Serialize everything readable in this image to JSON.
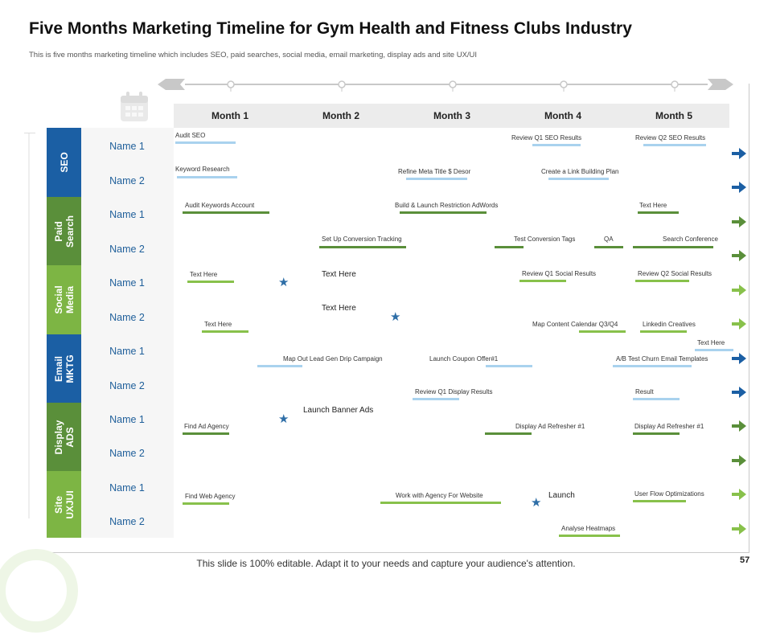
{
  "title": "Five Months Marketing Timeline for Gym Health and Fitness Clubs Industry",
  "subtitle": "This is five months marketing timeline which includes SEO, paid searches, social media, email marketing, display ads and site UX/UI",
  "months": [
    "Month 1",
    "Month 2",
    "Month 3",
    "Month 4",
    "Month 5"
  ],
  "categories": [
    {
      "label": "SEO",
      "color": "#1b5fa4",
      "rows": [
        "Name 1",
        "Name 2"
      ]
    },
    {
      "label": "Paid\nSearch",
      "color": "#5a8f3a",
      "rows": [
        "Name 1",
        "Name 2"
      ]
    },
    {
      "label": "Social\nMedia",
      "color": "#7db544",
      "rows": [
        "Name 1",
        "Name 2"
      ]
    },
    {
      "label": "Email\nMKTG",
      "color": "#1b5fa4",
      "rows": [
        "Name 1",
        "Name 2"
      ]
    },
    {
      "label": "Display\nADS",
      "color": "#5a8f3a",
      "rows": [
        "Name 1",
        "Name 2"
      ]
    },
    {
      "label": "Site\nUXJUI",
      "color": "#7db544",
      "rows": [
        "Name 1",
        "Name 2"
      ]
    }
  ],
  "tasks": {
    "audit_seo": "Audit SEO",
    "review_q1_seo": "Review Q1 SEO Results",
    "review_q2_seo": "Review Q2 SEO Results",
    "keyword_research": "Keyword Research",
    "refine_meta": "Refine Meta Title $ Desor",
    "link_building": "Create a Link Building Plan",
    "audit_keywords": "Audit Keywords Account",
    "build_launch": "Build & Launch Restriction AdWords",
    "paid_text_here": "Text Here",
    "conversion_tracking": "Set Up Conversion Tracking",
    "test_conversion": "Test Conversion Tags",
    "qa": "QA",
    "search_conference": "Search Conference",
    "social_text_here_1": "Text Here",
    "social_free_text_1": "Text Here",
    "review_q1_social": "Review Q1 Social Results",
    "review_q2_social": "Review Q2 Social Results",
    "social_free_text_2": "Text Here",
    "social_text_here_2": "Text Here",
    "map_content": "Map Content Calendar Q3/Q4",
    "linkedin": "Linkedin Creatives",
    "email_text_here": "Text Here",
    "lead_gen": "Map Out Lead Gen Drip Campaign",
    "coupon_offer": "Launch Coupon Offer#1",
    "churn_email": "A/B Test Churn Email Templates",
    "review_q1_display": "Review Q1 Display Results",
    "result": "Result",
    "banner_ads": "Launch Banner Ads",
    "find_ad_agency": "Find Ad Agency",
    "refresher_1a": "Display Ad Refresher #1",
    "refresher_1b": "Display Ad Refresher #1",
    "find_web_agency": "Find Web Agency",
    "work_with_agency": "Work with Agency For Website",
    "launch": "Launch",
    "user_flow": "User Flow Optimizations",
    "heatmaps": "Analyse Heatmaps"
  },
  "colors": {
    "dark_green": "#5a8f3a",
    "light_green": "#88c14b",
    "light_blue": "#a9d2ee",
    "blue": "#1b5fa4",
    "star": "#2e6ea7"
  },
  "icons": [
    "calendar-icon",
    "star-icon",
    "arrow-right-icon"
  ],
  "footer": "This slide is 100% editable. Adapt it to your needs and capture your audience's attention.",
  "page_number": "57"
}
